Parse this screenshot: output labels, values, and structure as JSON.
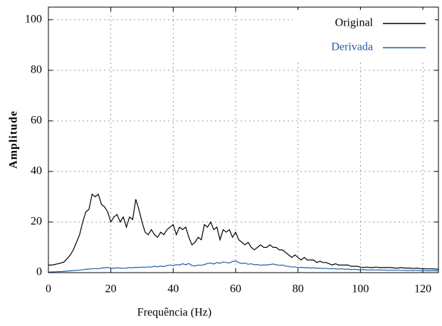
{
  "chart_data": {
    "type": "line",
    "xlabel": "Frequência (Hz)",
    "ylabel": "Amplitude",
    "x": [
      0,
      1,
      2,
      3,
      4,
      5,
      6,
      7,
      8,
      9,
      10,
      11,
      12,
      13,
      14,
      15,
      16,
      17,
      18,
      19,
      20,
      21,
      22,
      23,
      24,
      25,
      26,
      27,
      28,
      29,
      30,
      31,
      32,
      33,
      34,
      35,
      36,
      37,
      38,
      39,
      40,
      41,
      42,
      43,
      44,
      45,
      46,
      47,
      48,
      49,
      50,
      51,
      52,
      53,
      54,
      55,
      56,
      57,
      58,
      59,
      60,
      61,
      62,
      63,
      64,
      65,
      66,
      67,
      68,
      69,
      70,
      71,
      72,
      73,
      74,
      75,
      76,
      77,
      78,
      79,
      80,
      81,
      82,
      83,
      84,
      85,
      86,
      87,
      88,
      89,
      90,
      91,
      92,
      93,
      94,
      95,
      96,
      97,
      98,
      99,
      100,
      101,
      102,
      103,
      104,
      105,
      106,
      107,
      108,
      109,
      110,
      111,
      112,
      113,
      114,
      115,
      116,
      117,
      118,
      119,
      120,
      121,
      122,
      123,
      124,
      125
    ],
    "series": [
      {
        "name": "Original",
        "color": "#000000",
        "values": [
          3,
          3,
          3.2,
          3.5,
          3.8,
          4.2,
          5.5,
          7,
          9,
          12,
          15,
          20,
          24,
          25,
          31,
          30,
          31,
          27,
          26,
          24,
          20,
          22,
          23,
          20,
          22,
          18,
          22,
          21,
          29,
          25,
          20,
          16,
          15,
          17,
          15,
          14,
          16,
          15,
          17,
          18,
          19,
          15,
          18,
          17,
          18,
          14,
          11,
          12,
          14,
          13,
          19,
          18,
          20,
          17,
          18,
          13,
          17,
          16,
          17,
          14,
          16,
          13,
          12,
          11,
          12,
          10,
          9,
          10,
          11,
          10,
          10,
          11,
          10,
          10,
          9,
          9,
          8,
          7,
          6,
          7,
          6,
          5,
          6,
          5,
          5,
          5,
          4,
          4.5,
          4,
          4,
          3.5,
          3,
          3.5,
          3,
          3,
          3,
          3,
          2.5,
          2.5,
          2.5,
          2.2,
          2,
          2.2,
          2,
          2,
          2.2,
          2,
          2,
          2,
          2,
          2,
          1.8,
          1.8,
          2,
          1.8,
          1.8,
          1.8,
          1.6,
          1.8,
          1.6,
          1.6,
          1.5,
          1.5,
          1.5,
          1.4,
          1.3
        ]
      },
      {
        "name": "Derivada",
        "color": "#1f5fa8",
        "values": [
          0.2,
          0.3,
          0.3,
          0.4,
          0.4,
          0.5,
          0.6,
          0.7,
          0.8,
          0.9,
          1,
          1.1,
          1.3,
          1.4,
          1.5,
          1.6,
          1.5,
          1.8,
          1.9,
          2,
          1.8,
          1.7,
          1.9,
          1.8,
          1.7,
          1.8,
          2,
          1.9,
          2.1,
          2,
          2.2,
          2.1,
          2.3,
          2.2,
          2.5,
          2.3,
          2.6,
          2.4,
          2.8,
          3,
          2.7,
          3.2,
          3,
          3.5,
          3.1,
          3.6,
          2.8,
          2.6,
          3,
          2.9,
          3.2,
          3.6,
          3.8,
          3.4,
          4,
          3.7,
          4.2,
          4,
          3.8,
          4.4,
          4.6,
          4,
          3.6,
          3.8,
          3.3,
          3.5,
          3.1,
          3.2,
          2.9,
          3.1,
          3,
          3.2,
          3.4,
          3.1,
          2.9,
          3,
          2.6,
          2.4,
          2.2,
          2.3,
          2,
          2.1,
          1.9,
          2,
          1.8,
          1.9,
          1.7,
          1.8,
          1.6,
          1.7,
          1.5,
          1.6,
          1.5,
          1.4,
          1.5,
          1.3,
          1.4,
          1.2,
          1.3,
          1.2,
          1.1,
          1.2,
          1.1,
          1,
          1.1,
          1,
          1.1,
          1,
          1,
          0.9,
          1,
          0.9,
          1,
          0.9,
          0.9,
          0.8,
          0.9,
          0.8,
          0.9,
          0.8,
          0.8,
          0.8,
          0.7,
          0.8,
          0.7,
          0.7
        ]
      }
    ],
    "xlim": [
      0,
      125
    ],
    "xticks": [
      0,
      20,
      40,
      60,
      80,
      100,
      120
    ],
    "ylim": [
      0,
      105
    ],
    "yticks": [
      0,
      20,
      40,
      60,
      80,
      100
    ],
    "grid": true,
    "legend": "upper right"
  }
}
